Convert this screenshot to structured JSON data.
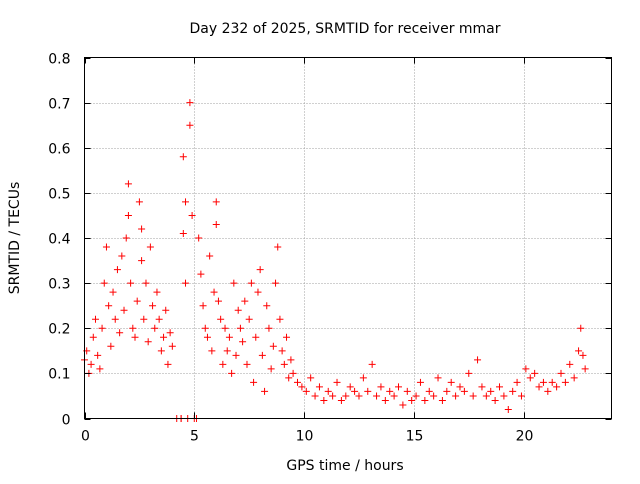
{
  "chart_data": {
    "type": "scatter",
    "title": "Day 232 of 2025, SRMTID for receiver mmar",
    "xlabel": "GPS time / hours",
    "ylabel": "SRMTID / TECUs",
    "xlim": [
      0,
      24
    ],
    "ylim": [
      0,
      0.8
    ],
    "xticks": [
      0,
      5,
      10,
      15,
      20
    ],
    "xtick_labels": [
      "0",
      "5",
      "10",
      "15",
      "20"
    ],
    "yticks": [
      0,
      0.1,
      0.2,
      0.3,
      0.4,
      0.5,
      0.6,
      0.7,
      0.8
    ],
    "ytick_labels": [
      "0",
      "0.1",
      "0.2",
      "0.3",
      "0.4",
      "0.5",
      "0.6",
      "0.7",
      "0.8"
    ],
    "grid": true,
    "marker": "+",
    "color": "#ff0000",
    "series": [
      {
        "name": "SRMTID",
        "x": [
          0.0,
          0.1,
          0.2,
          0.3,
          0.4,
          0.5,
          0.6,
          0.7,
          0.8,
          0.9,
          1.0,
          1.1,
          1.2,
          1.3,
          1.4,
          1.5,
          1.6,
          1.7,
          1.8,
          1.9,
          2.0,
          2.0,
          2.1,
          2.2,
          2.3,
          2.4,
          2.5,
          2.6,
          2.6,
          2.7,
          2.8,
          2.9,
          3.0,
          3.1,
          3.2,
          3.3,
          3.4,
          3.5,
          3.6,
          3.7,
          3.8,
          3.9,
          4.0,
          4.2,
          4.4,
          4.4,
          4.5,
          4.5,
          4.6,
          4.6,
          4.7,
          4.8,
          4.8,
          4.9,
          5.0,
          5.1,
          5.2,
          5.3,
          5.4,
          5.5,
          5.6,
          5.7,
          5.8,
          5.9,
          6.0,
          6.0,
          6.1,
          6.2,
          6.3,
          6.4,
          6.5,
          6.6,
          6.7,
          6.8,
          6.9,
          7.0,
          7.1,
          7.2,
          7.3,
          7.4,
          7.5,
          7.6,
          7.7,
          7.8,
          7.9,
          8.0,
          8.1,
          8.2,
          8.3,
          8.4,
          8.5,
          8.6,
          8.7,
          8.8,
          8.9,
          9.0,
          9.1,
          9.2,
          9.3,
          9.4,
          9.5,
          9.7,
          9.9,
          10.1,
          10.3,
          10.5,
          10.7,
          10.9,
          11.1,
          11.3,
          11.5,
          11.7,
          11.9,
          12.1,
          12.3,
          12.5,
          12.7,
          12.9,
          13.1,
          13.3,
          13.5,
          13.7,
          13.9,
          14.1,
          14.3,
          14.5,
          14.7,
          14.9,
          15.1,
          15.3,
          15.5,
          15.7,
          15.9,
          16.1,
          16.3,
          16.5,
          16.7,
          16.9,
          17.1,
          17.3,
          17.5,
          17.7,
          17.9,
          18.1,
          18.3,
          18.5,
          18.7,
          18.9,
          19.1,
          19.3,
          19.5,
          19.7,
          19.9,
          20.1,
          20.3,
          20.5,
          20.7,
          20.9,
          21.1,
          21.3,
          21.5,
          21.7,
          21.9,
          22.1,
          22.3,
          22.5,
          22.6,
          22.7,
          22.8
        ],
        "y": [
          0.13,
          0.15,
          0.1,
          0.12,
          0.18,
          0.22,
          0.14,
          0.11,
          0.2,
          0.3,
          0.38,
          0.25,
          0.16,
          0.28,
          0.22,
          0.33,
          0.19,
          0.36,
          0.24,
          0.4,
          0.52,
          0.45,
          0.3,
          0.2,
          0.18,
          0.26,
          0.48,
          0.42,
          0.35,
          0.22,
          0.3,
          0.17,
          0.38,
          0.25,
          0.2,
          0.28,
          0.22,
          0.15,
          0.18,
          0.24,
          0.12,
          0.19,
          0.16,
          0.0,
          0.0,
          0.0,
          0.58,
          0.41,
          0.48,
          0.3,
          0.0,
          0.7,
          0.65,
          0.45,
          0.0,
          0.0,
          0.4,
          0.32,
          0.25,
          0.2,
          0.18,
          0.36,
          0.15,
          0.28,
          0.48,
          0.43,
          0.26,
          0.22,
          0.12,
          0.2,
          0.15,
          0.18,
          0.1,
          0.3,
          0.14,
          0.24,
          0.2,
          0.17,
          0.26,
          0.12,
          0.22,
          0.3,
          0.08,
          0.18,
          0.28,
          0.33,
          0.14,
          0.06,
          0.25,
          0.2,
          0.11,
          0.16,
          0.3,
          0.38,
          0.22,
          0.15,
          0.12,
          0.18,
          0.09,
          0.13,
          0.1,
          0.08,
          0.07,
          0.06,
          0.09,
          0.05,
          0.07,
          0.04,
          0.06,
          0.05,
          0.08,
          0.04,
          0.05,
          0.07,
          0.06,
          0.05,
          0.09,
          0.06,
          0.12,
          0.05,
          0.07,
          0.04,
          0.06,
          0.05,
          0.07,
          0.03,
          0.06,
          0.04,
          0.05,
          0.08,
          0.04,
          0.06,
          0.05,
          0.09,
          0.04,
          0.06,
          0.08,
          0.05,
          0.07,
          0.06,
          0.1,
          0.05,
          0.13,
          0.07,
          0.05,
          0.06,
          0.04,
          0.07,
          0.05,
          0.02,
          0.06,
          0.08,
          0.05,
          0.11,
          0.09,
          0.1,
          0.07,
          0.08,
          0.06,
          0.08,
          0.07,
          0.1,
          0.08,
          0.12,
          0.09,
          0.15,
          0.2,
          0.14,
          0.11
        ]
      }
    ]
  }
}
